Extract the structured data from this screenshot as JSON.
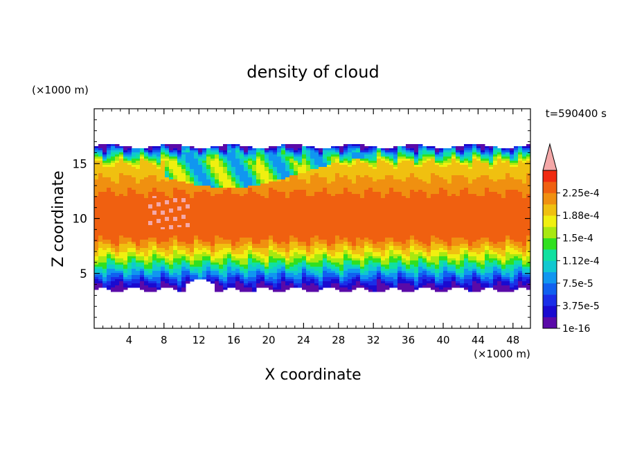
{
  "chart_data": {
    "type": "heatmap",
    "title": "density of cloud",
    "xlabel": "X coordinate",
    "ylabel": "Z coordinate",
    "x_unit": "(×1000 m)",
    "y_unit": "(×1000 m)",
    "time_label": "t=590400 s",
    "xlim": [
      0,
      50
    ],
    "ylim": [
      0,
      20
    ],
    "x_ticks": [
      4,
      8,
      12,
      16,
      20,
      24,
      28,
      32,
      36,
      40,
      44,
      48
    ],
    "y_ticks": [
      5,
      10,
      15
    ],
    "colorbar": {
      "labels": [
        "1e-16",
        "3.75e-5",
        "7.5e-5",
        "1.12e-4",
        "1.5e-4",
        "1.88e-4",
        "2.25e-4"
      ],
      "label_values": [
        0,
        3.75e-05,
        7.5e-05,
        0.0001125,
        0.00015,
        0.0001875,
        0.000225
      ],
      "levels": [
        0,
        1.875e-05,
        3.75e-05,
        5.625e-05,
        7.5e-05,
        9.375e-05,
        0.0001125,
        0.00013125,
        0.00015,
        0.00016875,
        0.0001875,
        0.00020625,
        0.000225,
        0.00024375
      ],
      "colors": [
        "#5a0aa8",
        "#1a0ad0",
        "#1a2ee8",
        "#1060f0",
        "#1096f0",
        "#10c8d0",
        "#10e0a0",
        "#30e020",
        "#a8e810",
        "#f0f010",
        "#f0c010",
        "#f09010",
        "#f06010",
        "#f02a10"
      ],
      "extend_color": "#f4a8a8"
    },
    "field_summary": {
      "cloud_base_z": 3.5,
      "cloud_top_z": 16.5,
      "levels_by_height": [
        {
          "z": 3.5,
          "value": 0
        },
        {
          "z": 4.2,
          "value": 3.75e-05
        },
        {
          "z": 4.8,
          "value": 7.5e-05
        },
        {
          "z": 5.5,
          "value": 0.0001125
        },
        {
          "z": 6.2,
          "value": 0.00015
        },
        {
          "z": 7.0,
          "value": 0.0001875
        },
        {
          "z": 8.0,
          "value": 0.000225
        },
        {
          "z": 12.0,
          "value": 0.00023
        },
        {
          "z": 15.0,
          "value": 0.0001875
        },
        {
          "z": 16.2,
          "value": 7.5e-05
        },
        {
          "z": 16.7,
          "value": 0
        }
      ]
    }
  }
}
